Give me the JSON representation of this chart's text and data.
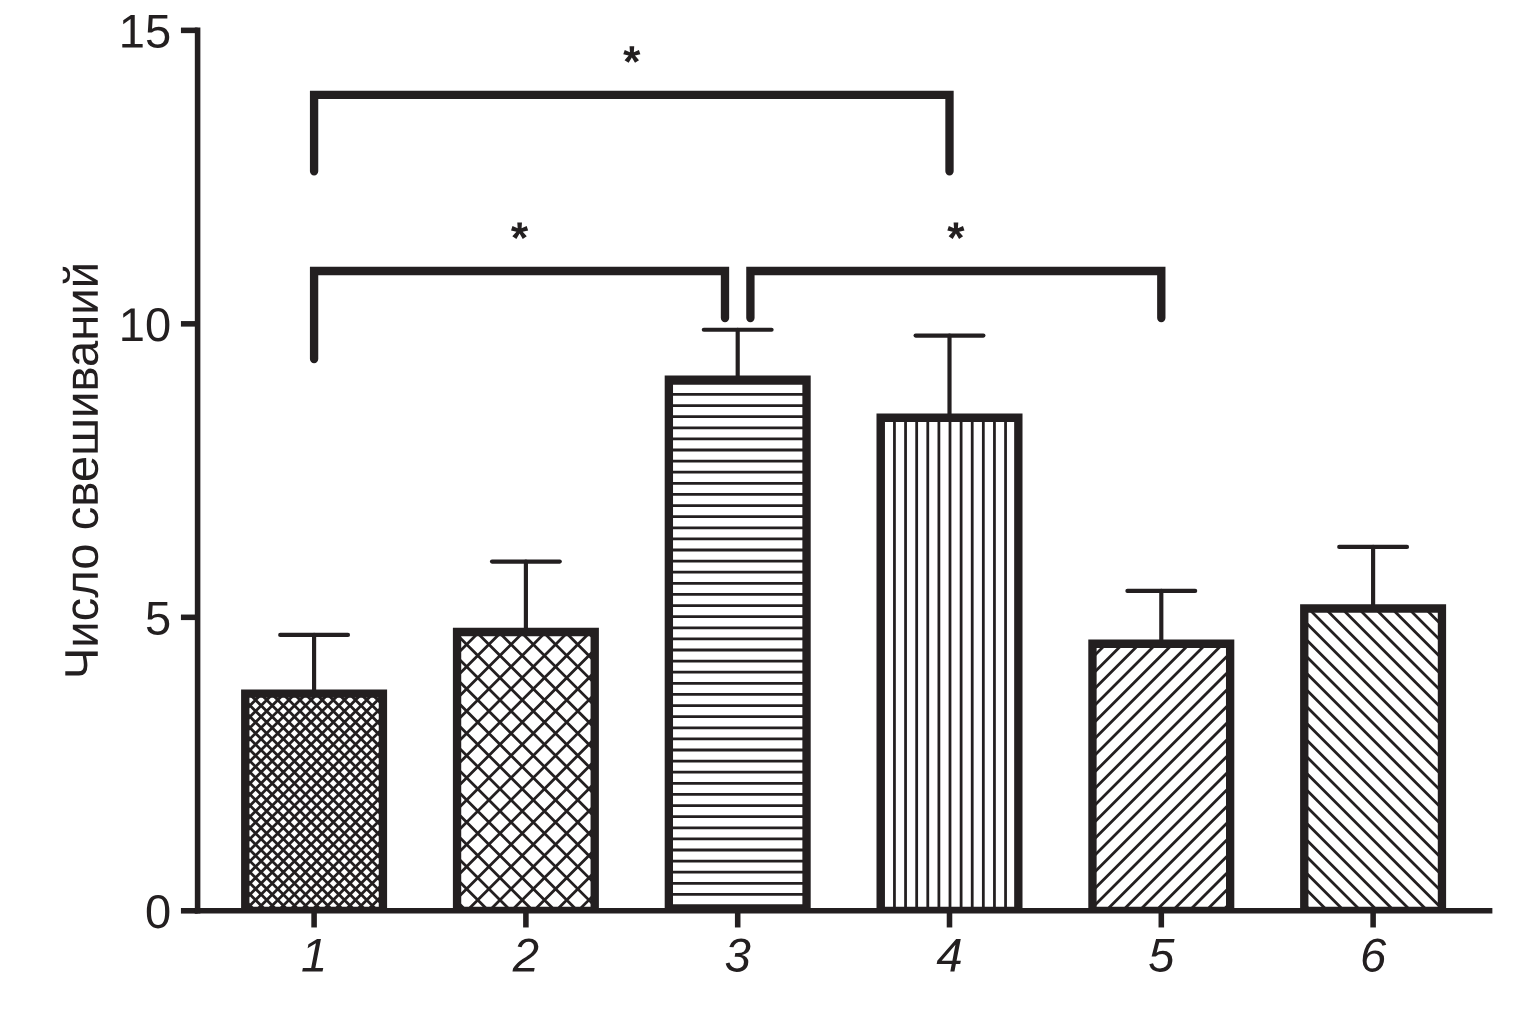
{
  "chart_data": {
    "type": "bar",
    "ylabel": "Число свешиваний",
    "categories": [
      "1",
      "2",
      "3",
      "4",
      "5",
      "6"
    ],
    "values": [
      3.7,
      4.75,
      9.05,
      8.4,
      4.55,
      5.15
    ],
    "errors": [
      [
        3.7,
        4.7
      ],
      [
        4.75,
        5.95
      ],
      [
        9.05,
        9.9
      ],
      [
        8.4,
        9.8
      ],
      [
        4.55,
        5.45
      ],
      [
        5.15,
        6.2
      ]
    ],
    "ylim": [
      0,
      15
    ],
    "yticks": [
      0,
      5,
      10,
      15
    ],
    "grid": false,
    "legend": false,
    "annotations": [
      "*",
      "*",
      "*"
    ]
  }
}
